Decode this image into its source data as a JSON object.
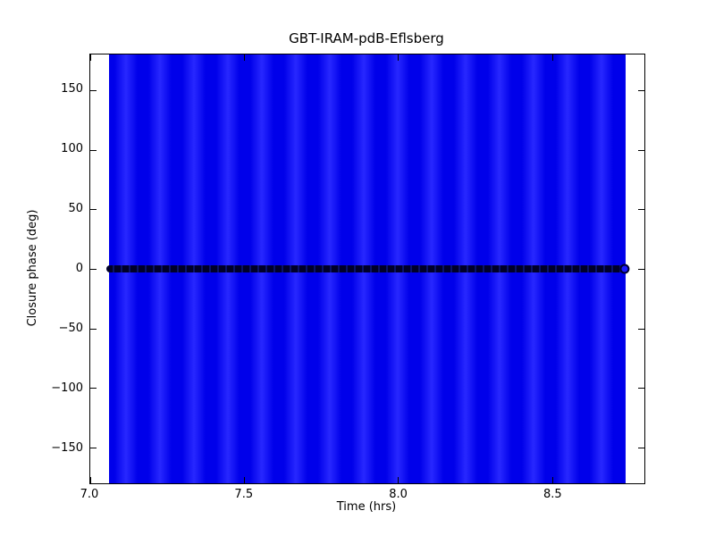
{
  "figure": {
    "title": "GBT-IRAM-pdB-Eflsberg",
    "xlabel": "Time (hrs)",
    "ylabel": "Closure phase (deg)"
  },
  "colors": {
    "errorbar_blue": "#0000ff",
    "errorbar_blue_dark": "#0000ea",
    "errorbar_blue_bright": "#2828ff",
    "marker_edge_dark": "#000030",
    "marker_face_blue": "#1a1aff",
    "axis_color": "#000000",
    "background": "#ffffff"
  },
  "chart_data": {
    "type": "scatter",
    "title": "GBT-IRAM-pdB-Eflsberg",
    "xlabel": "Time (hrs)",
    "ylabel": "Closure phase (deg)",
    "xlim": [
      7.0,
      8.8
    ],
    "ylim": [
      -180,
      180
    ],
    "grid": false,
    "legend": null,
    "tick_direction": "in",
    "x_ticks": [
      {
        "value": 7.0,
        "label": "7.0"
      },
      {
        "value": 7.5,
        "label": "7.5"
      },
      {
        "value": 8.0,
        "label": "8.0"
      },
      {
        "value": 8.5,
        "label": "8.5"
      }
    ],
    "y_ticks": [
      {
        "value": 150,
        "label": "150"
      },
      {
        "value": 100,
        "label": "100"
      },
      {
        "value": 50,
        "label": "50"
      },
      {
        "value": 0,
        "label": "0"
      },
      {
        "value": -50,
        "label": "−50"
      },
      {
        "value": -100,
        "label": "−100"
      },
      {
        "value": -150,
        "label": "−150"
      }
    ],
    "series": [
      {
        "name": "closure-phase",
        "marker": "circle",
        "marker_face": "#1a1aff",
        "marker_edge": "#000030",
        "x_start": 7.06,
        "x_end": 8.74,
        "y_value": 0,
        "sampling": "dense continuous points (overlapping markers form a solid band)",
        "errorbars": {
          "color": "#0000ff",
          "extent": "error bars exceed the y-axis range (beyond ±180 deg), filling the full plot height from 7.06 to 8.74 hrs"
        }
      }
    ]
  }
}
